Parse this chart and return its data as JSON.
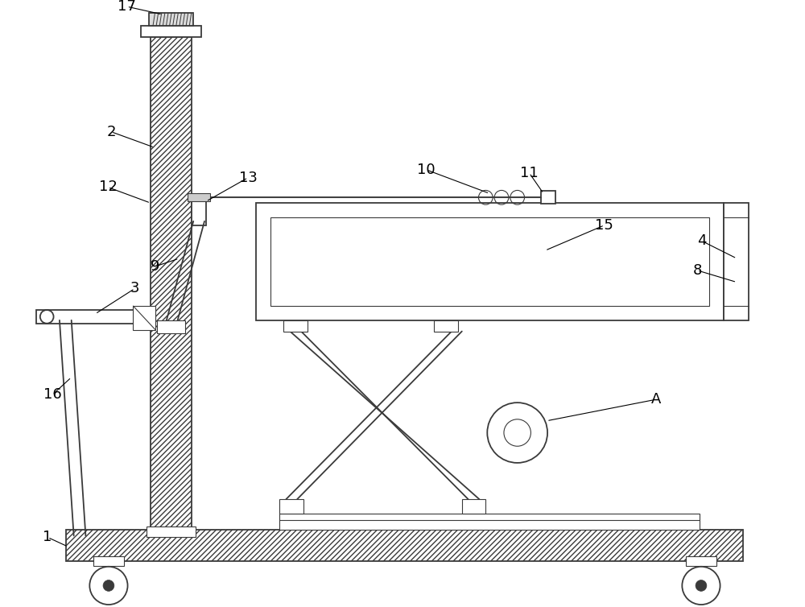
{
  "bg_color": "#ffffff",
  "line_color": "#3a3a3a",
  "figsize": [
    10.0,
    7.54
  ],
  "dpi": 100
}
